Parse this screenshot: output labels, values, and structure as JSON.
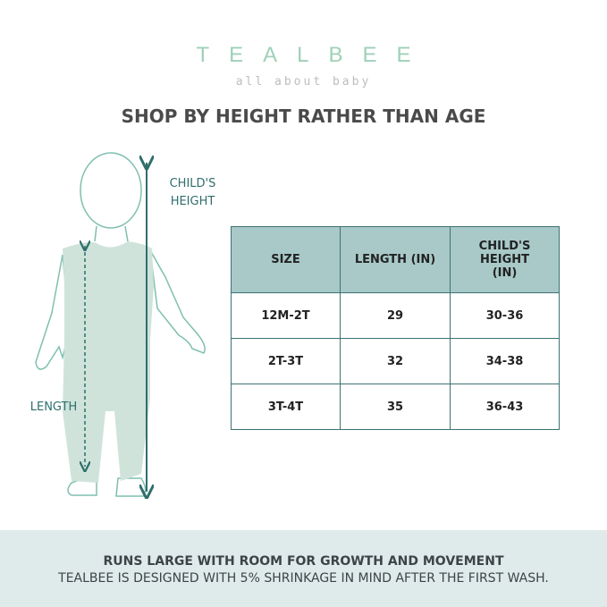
{
  "logo": {
    "brand": "TEALBEE",
    "tagline": "all about baby"
  },
  "title": "SHOP BY HEIGHT RATHER THAN AGE",
  "diagram": {
    "height_label": "CHILD'S HEIGHT",
    "length_label": "LENGTH"
  },
  "table": {
    "headers": [
      "SIZE",
      "LENGTH (IN)",
      "CHILD'S HEIGHT (IN)"
    ],
    "rows": [
      [
        "12M-2T",
        "29",
        "30-36"
      ],
      [
        "2T-3T",
        "32",
        "34-38"
      ],
      [
        "3T-4T",
        "35",
        "36-43"
      ]
    ]
  },
  "footer": {
    "headline": "RUNS LARGE WITH ROOM FOR GROWTH AND MOVEMENT",
    "note": "TEALBEE IS DESIGNED WITH 5% SHRINKAGE IN MIND AFTER THE FIRST WASH."
  },
  "colors": {
    "teal": "#2f6e6c",
    "header_fill": "#a8c9c8",
    "garment": "#cfe3da",
    "footer_bg": "#dfeaea"
  }
}
